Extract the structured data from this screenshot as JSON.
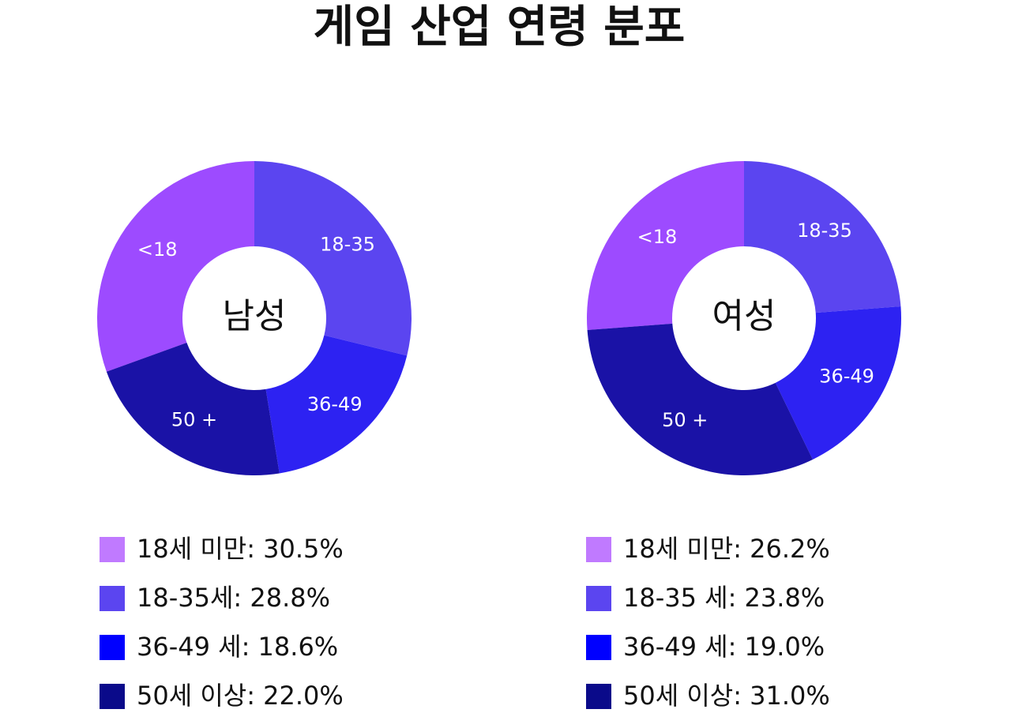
{
  "title": "게임 산업 연령 분포",
  "chart_data": [
    {
      "type": "donut",
      "center_label": "남성",
      "categories": [
        "<18",
        "18-35",
        "36-49",
        "50 +"
      ],
      "values": [
        30.5,
        28.8,
        18.6,
        22.0
      ],
      "colors": [
        "#9d4bff",
        "#5b45f0",
        "#2d22f2",
        "#1a12a6"
      ],
      "legend_colors": [
        "#c07aff",
        "#5b45f0",
        "#0000ff",
        "#0a0a8a"
      ],
      "legend_labels": [
        "18세 미만: 30.5%",
        "18-35세: 28.8%",
        "36-49 세: 18.6%",
        "50세 이상: 22.0%"
      ]
    },
    {
      "type": "donut",
      "center_label": "여성",
      "categories": [
        "<18",
        "18-35",
        "36-49",
        "50 +"
      ],
      "values": [
        26.2,
        23.8,
        19.0,
        31.0
      ],
      "colors": [
        "#9d4bff",
        "#5b45f0",
        "#2d22f2",
        "#1a12a6"
      ],
      "legend_colors": [
        "#c07aff",
        "#5b45f0",
        "#0000ff",
        "#0a0a8a"
      ],
      "legend_labels": [
        "18세 미만: 26.2%",
        "18-35 세: 23.8%",
        "36-49 세: 19.0%",
        "50세 이상: 31.0%"
      ]
    }
  ]
}
